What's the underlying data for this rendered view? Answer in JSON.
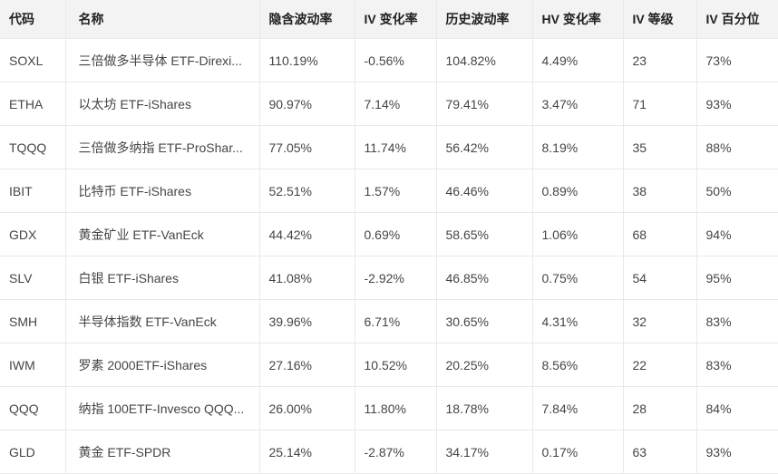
{
  "table": {
    "name": "etf-implied-volatility-screener",
    "columns": [
      {
        "key": "code",
        "label": "代码"
      },
      {
        "key": "name",
        "label": "名称"
      },
      {
        "key": "iv",
        "label": "隐含波动率"
      },
      {
        "key": "iv_change",
        "label": "IV 变化率"
      },
      {
        "key": "hv",
        "label": "历史波动率"
      },
      {
        "key": "hv_change",
        "label": "HV 变化率"
      },
      {
        "key": "iv_rank",
        "label": "IV 等级"
      },
      {
        "key": "iv_percentile",
        "label": "IV 百分位"
      }
    ],
    "rows": [
      {
        "code": "SOXL",
        "name": "三倍做多半导体 ETF-Direxi...",
        "iv": "110.19%",
        "iv_change": "-0.56%",
        "hv": "104.82%",
        "hv_change": "4.49%",
        "iv_rank": "23",
        "iv_percentile": "73%"
      },
      {
        "code": "ETHA",
        "name": "以太坊 ETF-iShares",
        "iv": "90.97%",
        "iv_change": "7.14%",
        "hv": "79.41%",
        "hv_change": "3.47%",
        "iv_rank": "71",
        "iv_percentile": "93%"
      },
      {
        "code": "TQQQ",
        "name": "三倍做多纳指 ETF-ProShar...",
        "iv": "77.05%",
        "iv_change": "11.74%",
        "hv": "56.42%",
        "hv_change": "8.19%",
        "iv_rank": "35",
        "iv_percentile": "88%"
      },
      {
        "code": "IBIT",
        "name": "比特币 ETF-iShares",
        "iv": "52.51%",
        "iv_change": "1.57%",
        "hv": "46.46%",
        "hv_change": "0.89%",
        "iv_rank": "38",
        "iv_percentile": "50%"
      },
      {
        "code": "GDX",
        "name": "黄金矿业 ETF-VanEck",
        "iv": "44.42%",
        "iv_change": "0.69%",
        "hv": "58.65%",
        "hv_change": "1.06%",
        "iv_rank": "68",
        "iv_percentile": "94%"
      },
      {
        "code": "SLV",
        "name": "白银 ETF-iShares",
        "iv": "41.08%",
        "iv_change": "-2.92%",
        "hv": "46.85%",
        "hv_change": "0.75%",
        "iv_rank": "54",
        "iv_percentile": "95%"
      },
      {
        "code": "SMH",
        "name": "半导体指数 ETF-VanEck",
        "iv": "39.96%",
        "iv_change": "6.71%",
        "hv": "30.65%",
        "hv_change": "4.31%",
        "iv_rank": "32",
        "iv_percentile": "83%"
      },
      {
        "code": "IWM",
        "name": "罗素 2000ETF-iShares",
        "iv": "27.16%",
        "iv_change": "10.52%",
        "hv": "20.25%",
        "hv_change": "8.56%",
        "iv_rank": "22",
        "iv_percentile": "83%"
      },
      {
        "code": "QQQ",
        "name": "纳指 100ETF-Invesco QQQ...",
        "iv": "26.00%",
        "iv_change": "11.80%",
        "hv": "18.78%",
        "hv_change": "7.84%",
        "iv_rank": "28",
        "iv_percentile": "84%"
      },
      {
        "code": "GLD",
        "name": "黄金 ETF-SPDR",
        "iv": "25.14%",
        "iv_change": "-2.87%",
        "hv": "34.17%",
        "hv_change": "0.17%",
        "iv_rank": "63",
        "iv_percentile": "93%"
      }
    ],
    "colors": {
      "header_bg": "#f3f3f3",
      "header_text": "#212121",
      "cell_text": "#454545",
      "border": "#e9e9e9",
      "row_bg": "#ffffff"
    }
  }
}
